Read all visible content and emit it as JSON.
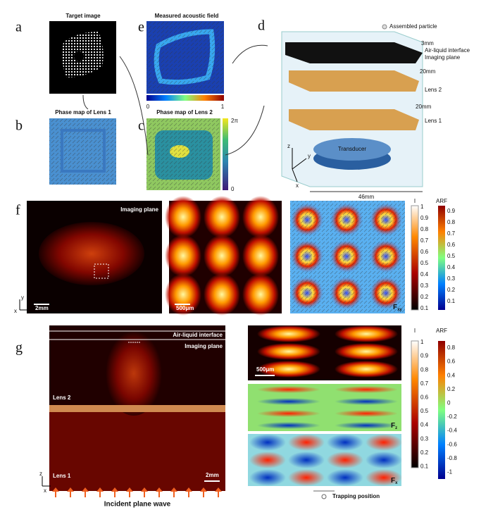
{
  "panels": {
    "a": {
      "label": "a",
      "title": "Target image"
    },
    "b": {
      "label": "b",
      "title": "Phase map of Lens 1"
    },
    "c": {
      "label": "c",
      "title": "Phase map of Lens 2",
      "colorbar_max": "2π",
      "colorbar_min": "0"
    },
    "d": {
      "label": "d",
      "legend": "Assembled particle",
      "layers": [
        "Air-liquid interface",
        "Imaging plane",
        "Lens 2",
        "Lens 1"
      ],
      "transducer": "Transducer",
      "gaps": [
        "3mm",
        "20mm",
        "20mm"
      ],
      "width": "46mm",
      "axes": [
        "z",
        "y",
        "x"
      ]
    },
    "e": {
      "label": "e",
      "title": "Measured acoustic field",
      "colorbar_min": "0",
      "colorbar_max": "1"
    },
    "f": {
      "label": "f",
      "plane": "Imaging plane",
      "scale_left": "2mm",
      "scale_mid": "500μm",
      "force": "F",
      "force_sub": "xy",
      "axes": [
        "y",
        "x"
      ],
      "intensity_bar": {
        "title": "I",
        "ticks": [
          "1",
          "0.9",
          "0.8",
          "0.7",
          "0.6",
          "0.5",
          "0.4",
          "0.3",
          "0.2",
          "0.1"
        ]
      },
      "arf_bar": {
        "title": "ARF",
        "ticks": [
          "0.9",
          "0.8",
          "0.7",
          "0.6",
          "0.5",
          "0.4",
          "0.3",
          "0.2",
          "0.1"
        ]
      }
    },
    "g": {
      "label": "g",
      "interface": "Air-liquid interface",
      "plane": "Imaging plane",
      "lens2": "Lens 2",
      "lens1": "Lens 1",
      "scale_left": "2mm",
      "scale_right": "500μm",
      "axes": [
        "z",
        "x"
      ],
      "wave": "Incident plane wave",
      "force": "F",
      "force_mid_sub": "z",
      "force_bottom_sub": "x",
      "trapping": "Trapping position",
      "intensity_bar": {
        "title": "I",
        "ticks": [
          "1",
          "0.9",
          "0.8",
          "0.7",
          "0.6",
          "0.5",
          "0.4",
          "0.3",
          "0.2",
          "0.1"
        ]
      },
      "arf_bar": {
        "title": "ARF",
        "ticks": [
          "0.8",
          "0.6",
          "0.4",
          "0.2",
          "0",
          "-0.2",
          "-0.4",
          "-0.6",
          "-0.8",
          "-1"
        ]
      }
    }
  }
}
